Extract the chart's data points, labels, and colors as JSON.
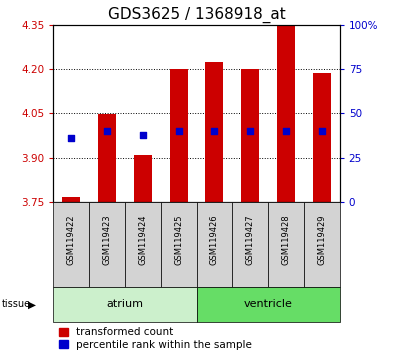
{
  "title": "GDS3625 / 1368918_at",
  "samples": [
    "GSM119422",
    "GSM119423",
    "GSM119424",
    "GSM119425",
    "GSM119426",
    "GSM119427",
    "GSM119428",
    "GSM119429"
  ],
  "bar_bottom": 3.75,
  "red_values": [
    3.765,
    4.048,
    3.908,
    4.2,
    4.225,
    4.2,
    4.345,
    4.185
  ],
  "blue_values": [
    3.965,
    3.99,
    3.975,
    3.99,
    3.99,
    3.99,
    3.99,
    3.99
  ],
  "ylim_left": [
    3.75,
    4.35
  ],
  "ylim_right": [
    0,
    100
  ],
  "yticks_left": [
    3.75,
    3.9,
    4.05,
    4.2,
    4.35
  ],
  "yticks_right": [
    0,
    25,
    50,
    75,
    100
  ],
  "bar_color": "#cc0000",
  "dot_color": "#0000cc",
  "bar_width": 0.5,
  "dot_size": 18,
  "grid_color": "#000000",
  "left_tick_color": "#cc0000",
  "right_tick_color": "#0000cc",
  "title_fontsize": 11,
  "tick_fontsize": 7.5,
  "sample_fontsize": 6,
  "legend_fontsize": 7.5,
  "group_fontsize": 8,
  "atrium_color": "#ccf0cc",
  "ventricle_color": "#66dd66",
  "sample_bg_color": "#d3d3d3",
  "groups_info": [
    {
      "label": "atrium",
      "start": 0,
      "end": 3,
      "color": "#ccf0cc"
    },
    {
      "label": "ventricle",
      "start": 4,
      "end": 7,
      "color": "#66dd66"
    }
  ]
}
